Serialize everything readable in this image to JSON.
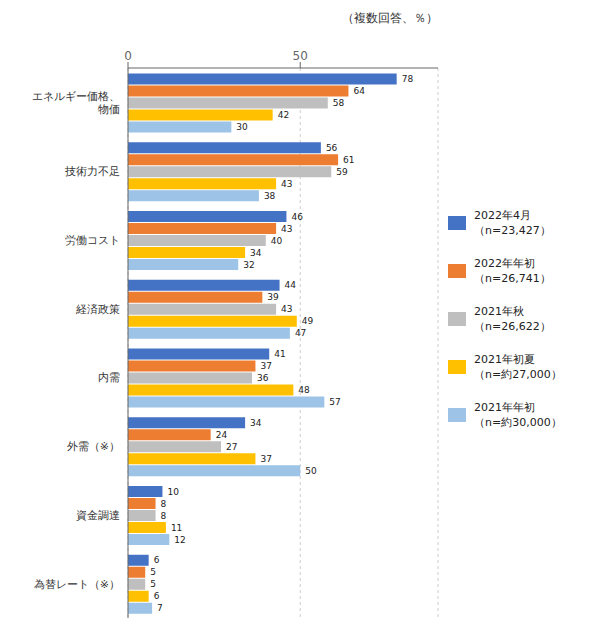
{
  "chart_data": {
    "type": "bar",
    "orientation": "horizontal",
    "title": "（複数回答、％）",
    "categories": [
      "エネルギー価格、\n物価",
      "技術力不足",
      "労働コスト",
      "経済政策",
      "内需",
      "外需（※）",
      "資金調達",
      "為替レート（※）"
    ],
    "series": [
      {
        "name": "2022年4月\n（n=23,427）",
        "values": [
          78,
          56,
          46,
          44,
          41,
          34,
          10,
          6
        ],
        "color": "#4472C4"
      },
      {
        "name": "2022年年初\n（n=26,741）",
        "values": [
          64,
          61,
          43,
          39,
          37,
          24,
          8,
          5
        ],
        "color": "#ED7D31"
      },
      {
        "name": "2021年秋\n（n=26,622）",
        "values": [
          58,
          59,
          40,
          43,
          36,
          27,
          8,
          5
        ],
        "color": "#BFBFBF"
      },
      {
        "name": "2021年初夏\n（n=約27,000）",
        "values": [
          42,
          43,
          34,
          49,
          48,
          37,
          11,
          6
        ],
        "color": "#FFC000"
      },
      {
        "name": "2021年年初\n（n=約30,000）",
        "values": [
          30,
          38,
          32,
          47,
          57,
          50,
          12,
          7
        ],
        "color": "#9DC3E6"
      }
    ],
    "xlim": [
      0,
      90
    ],
    "xticks": [
      0,
      50
    ],
    "grid": true,
    "data_labels": true,
    "legend": "right"
  }
}
